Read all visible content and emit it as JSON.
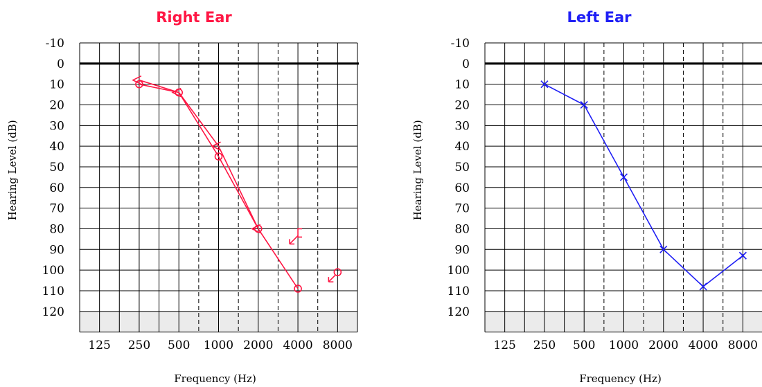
{
  "chart_data": [
    {
      "type": "line",
      "title": "Right Ear",
      "title_color": "#ff1744",
      "xlabel": "Frequency (Hz)",
      "ylabel": "Hearing Level (dB)",
      "ylim": [
        -10,
        130
      ],
      "x_ticks": [
        "125",
        "250",
        "500",
        "1000",
        "2000",
        "4000",
        "8000"
      ],
      "y_ticks": [
        "-10",
        "0",
        "10",
        "20",
        "30",
        "40",
        "50",
        "60",
        "70",
        "80",
        "90",
        "100",
        "110",
        "120"
      ],
      "grid": true,
      "color": "#ff1744",
      "series": [
        {
          "marker": "circle",
          "x": [
            250,
            500,
            1000,
            2000,
            4000
          ],
          "values": [
            10,
            14,
            45,
            80,
            109
          ]
        },
        {
          "marker": "open-angle",
          "x": [
            250,
            500,
            1000,
            2000
          ],
          "values": [
            8,
            14,
            40,
            80
          ]
        }
      ],
      "no_response_symbols": [
        {
          "marker": "bracket-arrow",
          "x": 4000,
          "value": 82
        },
        {
          "marker": "circle-arrow",
          "x": 8000,
          "value": 101
        }
      ]
    },
    {
      "type": "line",
      "title": "Left Ear",
      "title_color": "#1f1ff5",
      "xlabel": "Frequency (Hz)",
      "ylabel": "Hearing Level (dB)",
      "ylim": [
        -10,
        130
      ],
      "x_ticks": [
        "125",
        "250",
        "500",
        "1000",
        "2000",
        "4000",
        "8000"
      ],
      "y_ticks": [
        "-10",
        "0",
        "10",
        "20",
        "30",
        "40",
        "50",
        "60",
        "70",
        "80",
        "90",
        "100",
        "110",
        "120"
      ],
      "grid": true,
      "color": "#1f1ff5",
      "series": [
        {
          "marker": "x",
          "x": [
            250,
            500,
            1000,
            2000,
            4000,
            8000
          ],
          "values": [
            10,
            20,
            55,
            90,
            108,
            93
          ]
        }
      ]
    }
  ]
}
